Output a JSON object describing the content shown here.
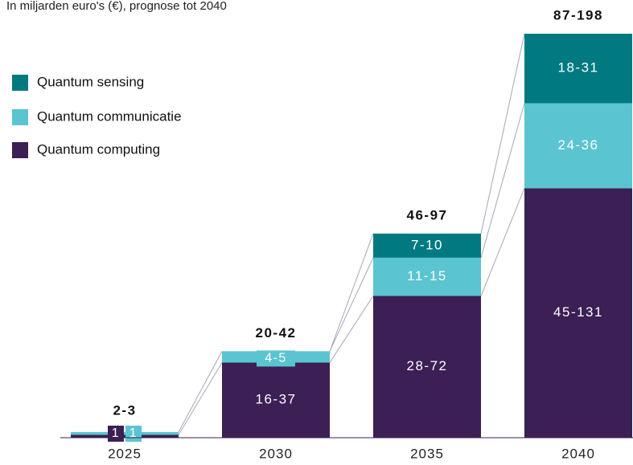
{
  "chart_data": {
    "type": "stacked_bar",
    "title": "In miljarden euro's (€), prognose tot 2040",
    "categories": [
      "2025",
      "2030",
      "2035",
      "2040"
    ],
    "totals": [
      "2-3",
      "20-42",
      "46-97",
      "87-198"
    ],
    "series": [
      {
        "name": "Quantum computing",
        "color": "#3b1f55",
        "values": [
          1,
          26.5,
          50,
          88
        ],
        "value_labels": [
          "1",
          "16-37",
          "28-72",
          "45-131"
        ]
      },
      {
        "name": "Quantum communicatie",
        "color": "#5bc4d1",
        "values": [
          1,
          4,
          13.5,
          30
        ],
        "value_labels": [
          "1",
          "4-5",
          "11-15",
          "24-36"
        ]
      },
      {
        "name": "Quantum sensing",
        "color": "#007a80",
        "values": [
          null,
          null,
          8.5,
          24.5
        ],
        "value_labels": [
          null,
          null,
          "7-10",
          "18-31"
        ]
      }
    ]
  }
}
